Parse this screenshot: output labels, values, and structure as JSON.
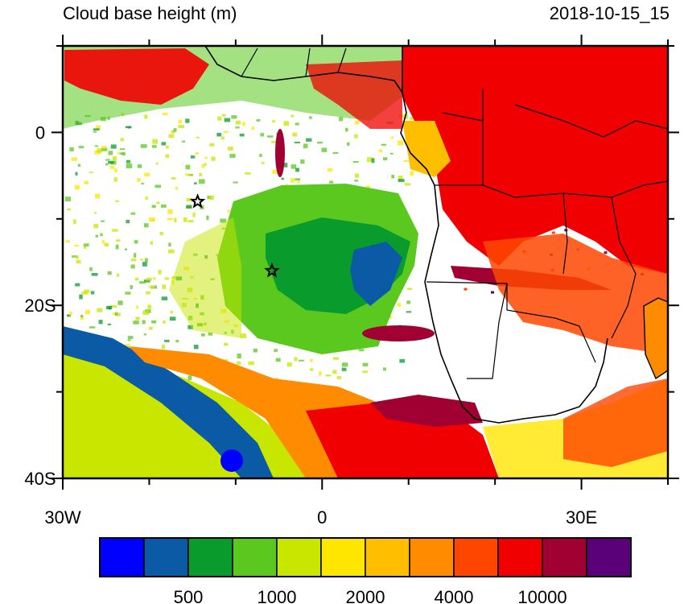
{
  "title": "Cloud base height (m)",
  "datetime": "2018-10-15_15",
  "map": {
    "lon_range": [
      -30,
      40
    ],
    "lat_range": [
      -40,
      10
    ],
    "lon_ticks": [
      {
        "value": -30,
        "label": "30W"
      },
      {
        "value": 0,
        "label": "0"
      },
      {
        "value": 30,
        "label": "30E"
      }
    ],
    "lat_ticks": [
      {
        "value": 0,
        "label": "0"
      },
      {
        "value": -20,
        "label": "20S"
      },
      {
        "value": -40,
        "label": "40S"
      }
    ],
    "markers": [
      {
        "name": "star",
        "lon": -14.4,
        "lat": -8
      },
      {
        "name": "star",
        "lon": -5.8,
        "lat": -16
      }
    ]
  },
  "colorbar": {
    "colors": [
      "#0000ff",
      "#0a5aa5",
      "#0a9b2d",
      "#5ac81e",
      "#c8e600",
      "#ffe600",
      "#ffbe00",
      "#ff8c00",
      "#ff4600",
      "#f00000",
      "#a00032",
      "#5a0078"
    ],
    "tick_labels": [
      "500",
      "1000",
      "2000",
      "4000",
      "10000"
    ]
  }
}
